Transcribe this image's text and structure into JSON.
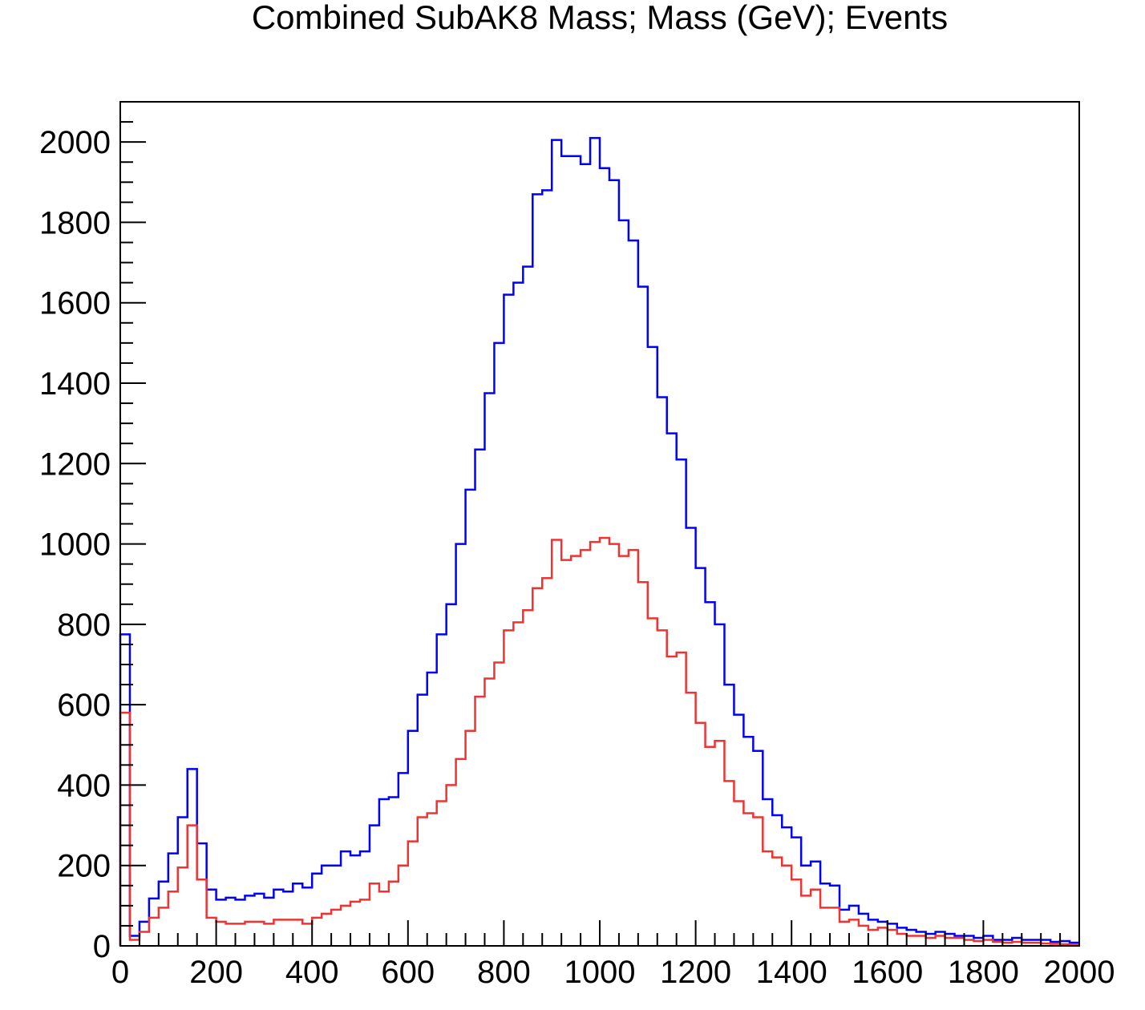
{
  "chart_data": {
    "type": "histogram",
    "title": "Combined SubAK8 Mass; Mass (GeV); Events",
    "xlim": [
      0,
      2000
    ],
    "ylim": [
      0,
      2100
    ],
    "bin_width": 20,
    "bin_edges_start": 0,
    "x_ticks": [
      0,
      200,
      400,
      600,
      800,
      1000,
      1200,
      1400,
      1600,
      1800,
      2000
    ],
    "y_ticks": [
      0,
      200,
      400,
      600,
      800,
      1000,
      1200,
      1400,
      1600,
      1800,
      2000
    ],
    "x_tick_labels": [
      "0",
      "200",
      "400",
      "600",
      "800",
      "1000",
      "1200",
      "1400",
      "1600",
      "1800",
      "2000"
    ],
    "y_tick_labels": [
      "0",
      "200",
      "400",
      "600",
      "800",
      "1000",
      "1200",
      "1400",
      "1600",
      "1800",
      "2000"
    ],
    "grid": false,
    "legend": "none",
    "series": [
      {
        "color": "#0000ff",
        "values": [
          775,
          25,
          60,
          118,
          160,
          230,
          320,
          440,
          255,
          140,
          115,
          120,
          115,
          125,
          130,
          120,
          140,
          135,
          155,
          145,
          180,
          200,
          200,
          235,
          225,
          235,
          300,
          365,
          370,
          430,
          535,
          625,
          680,
          775,
          850,
          1000,
          1135,
          1235,
          1375,
          1500,
          1620,
          1650,
          1690,
          1870,
          1880,
          2005,
          1965,
          1965,
          1945,
          2010,
          1935,
          1905,
          1805,
          1755,
          1640,
          1490,
          1365,
          1275,
          1210,
          1040,
          940,
          855,
          800,
          650,
          575,
          520,
          485,
          365,
          325,
          295,
          270,
          200,
          210,
          155,
          150,
          90,
          100,
          80,
          65,
          60,
          55,
          45,
          40,
          35,
          30,
          35,
          30,
          25,
          25,
          20,
          25,
          15,
          15,
          20,
          15,
          15,
          15,
          10,
          12,
          8
        ]
      },
      {
        "color": "#ee3333",
        "values": [
          580,
          15,
          35,
          70,
          95,
          135,
          195,
          300,
          165,
          70,
          60,
          55,
          55,
          60,
          60,
          55,
          65,
          65,
          65,
          55,
          70,
          80,
          90,
          100,
          110,
          115,
          155,
          135,
          160,
          200,
          260,
          320,
          330,
          360,
          400,
          465,
          535,
          620,
          665,
          705,
          785,
          805,
          835,
          890,
          915,
          1010,
          960,
          970,
          985,
          1005,
          1015,
          1000,
          970,
          985,
          905,
          815,
          785,
          720,
          730,
          630,
          555,
          495,
          510,
          410,
          360,
          330,
          320,
          235,
          220,
          200,
          165,
          125,
          140,
          95,
          95,
          60,
          65,
          50,
          40,
          45,
          40,
          30,
          25,
          25,
          20,
          25,
          20,
          20,
          15,
          12,
          15,
          10,
          8,
          10,
          8,
          8,
          6,
          5,
          4,
          3
        ]
      }
    ]
  }
}
